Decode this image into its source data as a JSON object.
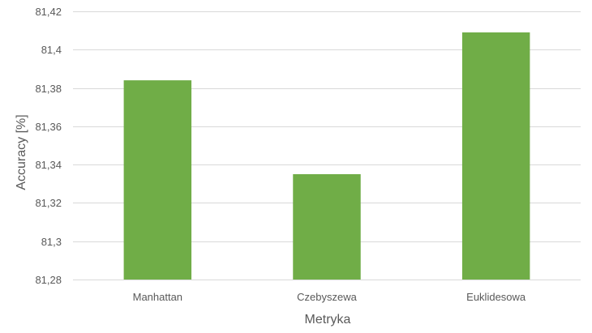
{
  "chart_data": {
    "type": "bar",
    "title": "",
    "xlabel": "Metryka",
    "ylabel": "Accuracy [%]",
    "categories": [
      "Manhattan",
      "Czebyszewa",
      "Euklidesowa"
    ],
    "values": [
      81.384,
      81.335,
      81.409
    ],
    "ylim": [
      81.28,
      81.42
    ],
    "yticks": [
      81.28,
      81.3,
      81.32,
      81.34,
      81.36,
      81.38,
      81.4,
      81.42
    ],
    "ytick_labels": [
      "81,28",
      "81,3",
      "81,32",
      "81,34",
      "81,36",
      "81,38",
      "81,4",
      "81,42"
    ],
    "grid": true,
    "legend": "none",
    "bar_color": "#70ad47"
  }
}
